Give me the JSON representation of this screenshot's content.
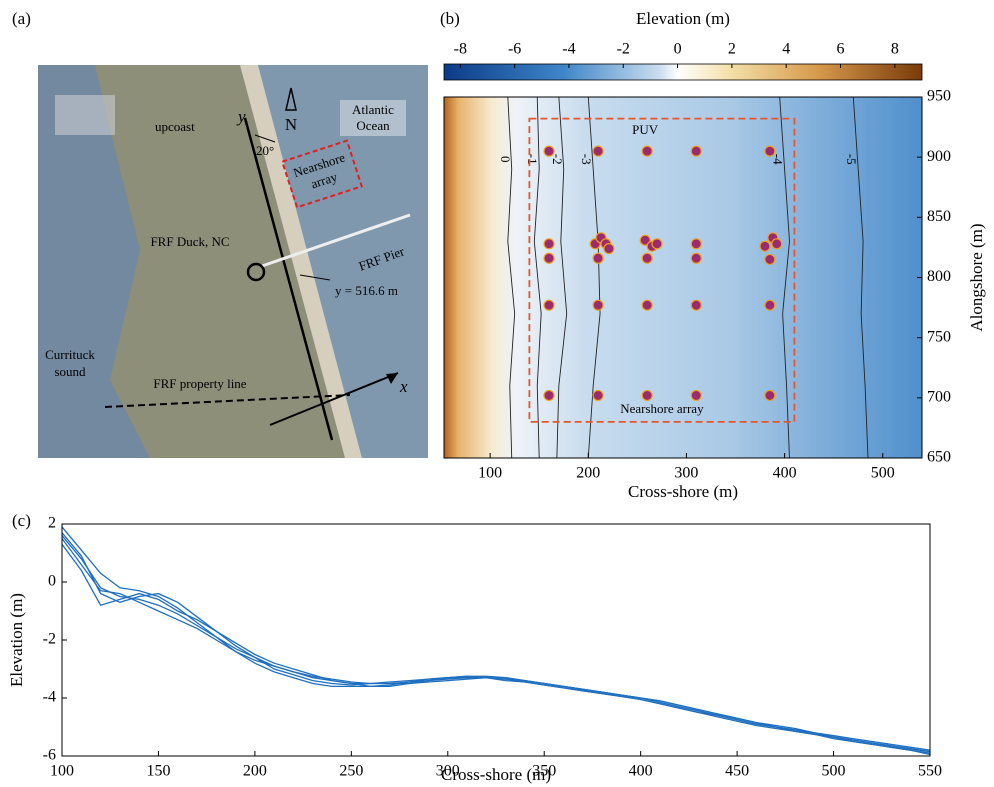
{
  "photo": {
    "panel_label": "(a)",
    "labels": {
      "upcoast": "upcoast",
      "north": "N",
      "ocean": [
        "Atlantic",
        "Ocean"
      ],
      "y_axis": "y",
      "angle": "20°",
      "array": [
        "Nearshore",
        "array"
      ],
      "pier": "FRF Pier",
      "duck": "FRF Duck, NC",
      "origin": "y = 516.6 m",
      "sound": [
        "Currituck",
        "sound"
      ],
      "property": "FRF property line",
      "x_axis": "x"
    }
  },
  "chart_data": [
    {
      "type": "contour",
      "panel_label": "(b)",
      "colorbar": {
        "label": "Elevation (m)",
        "lim": [
          -8.6,
          9
        ],
        "ticks": [
          -8,
          -6,
          -4,
          -2,
          0,
          2,
          4,
          6,
          8
        ]
      },
      "xlabel": "Cross-shore (m)",
      "ylabel": "Alongshore (m)",
      "xlim": [
        53,
        540
      ],
      "ylim": [
        650,
        950
      ],
      "xticks": [
        100,
        200,
        300,
        400,
        500
      ],
      "yticks": [
        650,
        700,
        750,
        800,
        850,
        900,
        950
      ],
      "contours": [
        {
          "level": 0,
          "x": [
            118,
            122,
            118,
            125,
            120,
            122
          ],
          "y": [
            950,
            890,
            830,
            770,
            710,
            650
          ]
        },
        {
          "level": -1,
          "x": [
            148,
            150,
            145,
            152,
            148,
            150
          ],
          "y": [
            950,
            890,
            830,
            770,
            710,
            650
          ]
        },
        {
          "level": -2,
          "x": [
            170,
            175,
            172,
            178,
            170,
            168
          ],
          "y": [
            950,
            890,
            830,
            770,
            710,
            650
          ]
        },
        {
          "level": -3,
          "x": [
            200,
            205,
            210,
            212,
            205,
            200
          ],
          "y": [
            950,
            890,
            830,
            770,
            710,
            650
          ]
        },
        {
          "level": -4,
          "x": [
            395,
            400,
            405,
            398,
            402,
            405
          ],
          "y": [
            950,
            890,
            830,
            770,
            710,
            650
          ]
        },
        {
          "level": -5,
          "x": [
            470,
            475,
            480,
            478,
            482,
            485
          ],
          "y": [
            950,
            890,
            830,
            770,
            710,
            650
          ]
        }
      ],
      "points": {
        "color": "#9b2a6e",
        "x": [
          160,
          210,
          260,
          310,
          385,
          160,
          207,
          213,
          218,
          221,
          258,
          265,
          270,
          310,
          380,
          388,
          392,
          160,
          210,
          260,
          310,
          385,
          160,
          210,
          260,
          310,
          385,
          160,
          210,
          260,
          310,
          385
        ],
        "y": [
          905,
          905,
          905,
          905,
          905,
          828,
          828,
          833,
          828,
          824,
          831,
          826,
          828,
          828,
          826,
          833,
          828,
          816,
          816,
          816,
          816,
          815,
          777,
          777,
          777,
          777,
          777,
          702,
          702,
          702,
          702,
          702
        ]
      },
      "point_label": "PUV",
      "array_label": "Nearshore array",
      "array_box": {
        "x": [
          140,
          410
        ],
        "y": [
          680,
          932
        ]
      }
    },
    {
      "type": "line",
      "panel_label": "(c)",
      "xlabel": "Cross-shore (m)",
      "ylabel": "Elevation (m)",
      "xlim": [
        100,
        550
      ],
      "ylim": [
        -6,
        2
      ],
      "xticks": [
        100,
        150,
        200,
        250,
        300,
        350,
        400,
        450,
        500,
        550
      ],
      "yticks": [
        -6,
        -4,
        -2,
        0,
        2
      ],
      "x": [
        100,
        110,
        120,
        130,
        140,
        150,
        160,
        170,
        180,
        190,
        200,
        210,
        220,
        230,
        240,
        250,
        260,
        270,
        280,
        290,
        300,
        310,
        320,
        330,
        340,
        350,
        360,
        370,
        380,
        390,
        400,
        410,
        420,
        430,
        440,
        450,
        460,
        470,
        480,
        490,
        500,
        510,
        520,
        530,
        540,
        550
      ],
      "series": [
        {
          "color": "#1f6fc0",
          "values": [
            1.6,
            0.8,
            -0.2,
            -0.5,
            -0.6,
            -0.8,
            -1.1,
            -1.5,
            -1.9,
            -2.3,
            -2.6,
            -2.9,
            -3.1,
            -3.3,
            -3.4,
            -3.5,
            -3.5,
            -3.5,
            -3.5,
            -3.4,
            -3.35,
            -3.3,
            -3.3,
            -3.35,
            -3.4,
            -3.5,
            -3.6,
            -3.7,
            -3.8,
            -3.9,
            -4.0,
            -4.15,
            -4.3,
            -4.45,
            -4.6,
            -4.75,
            -4.9,
            -5.0,
            -5.1,
            -5.2,
            -5.35,
            -5.45,
            -5.55,
            -5.65,
            -5.75,
            -5.85
          ]
        },
        {
          "color": "#1f6fc0",
          "values": [
            1.9,
            1.1,
            0.3,
            -0.2,
            -0.3,
            -0.5,
            -0.9,
            -1.4,
            -1.9,
            -2.4,
            -2.8,
            -3.1,
            -3.3,
            -3.5,
            -3.6,
            -3.6,
            -3.6,
            -3.55,
            -3.45,
            -3.35,
            -3.3,
            -3.25,
            -3.3,
            -3.35,
            -3.45,
            -3.55,
            -3.65,
            -3.75,
            -3.85,
            -3.95,
            -4.05,
            -4.2,
            -4.35,
            -4.5,
            -4.65,
            -4.8,
            -4.95,
            -5.05,
            -5.15,
            -5.25,
            -5.35,
            -5.5,
            -5.6,
            -5.7,
            -5.8,
            -5.9
          ]
        },
        {
          "color": "#1f6fc0",
          "values": [
            1.3,
            0.4,
            -0.8,
            -0.6,
            -0.4,
            -0.6,
            -1.0,
            -1.3,
            -1.7,
            -2.1,
            -2.5,
            -2.8,
            -3.0,
            -3.2,
            -3.4,
            -3.5,
            -3.6,
            -3.6,
            -3.5,
            -3.45,
            -3.4,
            -3.35,
            -3.3,
            -3.3,
            -3.4,
            -3.5,
            -3.6,
            -3.7,
            -3.8,
            -3.9,
            -4.0,
            -4.1,
            -4.25,
            -4.4,
            -4.55,
            -4.7,
            -4.85,
            -4.95,
            -5.05,
            -5.2,
            -5.3,
            -5.4,
            -5.5,
            -5.6,
            -5.7,
            -5.8
          ]
        },
        {
          "color": "#1f6fc0",
          "values": [
            1.7,
            0.9,
            -0.4,
            -0.7,
            -0.5,
            -0.4,
            -0.7,
            -1.2,
            -1.7,
            -2.2,
            -2.6,
            -3.0,
            -3.2,
            -3.4,
            -3.5,
            -3.55,
            -3.5,
            -3.45,
            -3.4,
            -3.35,
            -3.3,
            -3.3,
            -3.3,
            -3.4,
            -3.45,
            -3.55,
            -3.65,
            -3.75,
            -3.85,
            -3.95,
            -4.05,
            -4.2,
            -4.35,
            -4.5,
            -4.6,
            -4.75,
            -4.9,
            -5.0,
            -5.1,
            -5.25,
            -5.35,
            -5.45,
            -5.55,
            -5.65,
            -5.75,
            -5.85
          ]
        },
        {
          "color": "#1f6fc0",
          "values": [
            1.5,
            0.6,
            -0.3,
            -0.4,
            -0.7,
            -1.0,
            -1.3,
            -1.6,
            -2.0,
            -2.4,
            -2.7,
            -2.9,
            -3.1,
            -3.25,
            -3.35,
            -3.45,
            -3.5,
            -3.5,
            -3.45,
            -3.4,
            -3.3,
            -3.25,
            -3.25,
            -3.3,
            -3.4,
            -3.5,
            -3.6,
            -3.7,
            -3.8,
            -3.9,
            -4.0,
            -4.1,
            -4.25,
            -4.4,
            -4.55,
            -4.7,
            -4.85,
            -5.0,
            -5.15,
            -5.25,
            -5.4,
            -5.5,
            -5.6,
            -5.7,
            -5.8,
            -5.95
          ]
        }
      ]
    }
  ]
}
